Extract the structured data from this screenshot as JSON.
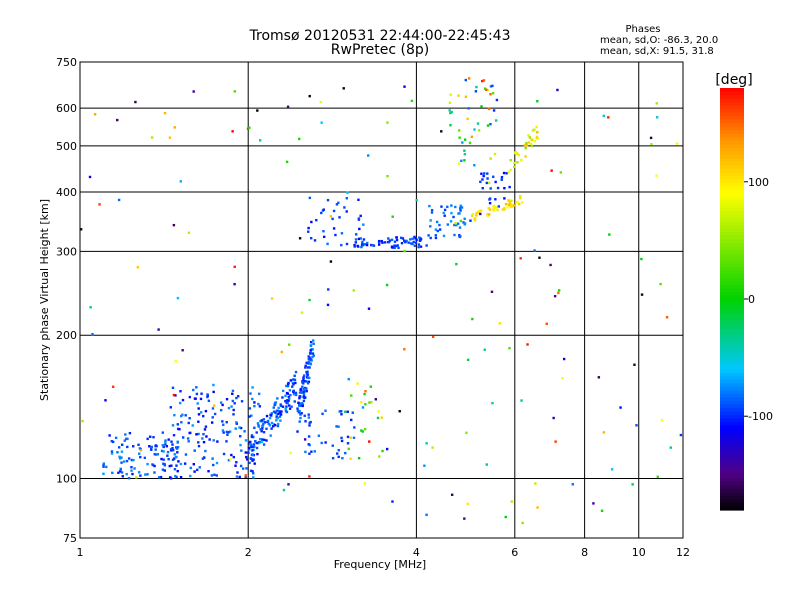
{
  "chart_data": {
    "type": "scatter",
    "title": "Tromsø 20120531 22:44:00-22:45:43",
    "subtitle": "RwPretec (8p)",
    "xlabel": "Frequency [MHz]",
    "ylabel": "Stationary phase Virtual Height [km]",
    "x_scale": "log",
    "y_scale": "log",
    "xlim": [
      1,
      12
    ],
    "ylim": [
      75,
      750
    ],
    "x_ticks": [
      1,
      2,
      4,
      6,
      8,
      10,
      12
    ],
    "x_tick_labels": [
      "1",
      "2",
      "4",
      "6",
      "8",
      "10",
      "12"
    ],
    "y_ticks": [
      75,
      100,
      200,
      300,
      400,
      500,
      600,
      750
    ],
    "y_tick_labels": [
      "75",
      "100",
      "200",
      "300",
      "400",
      "500",
      "600",
      "750"
    ],
    "grid": true,
    "info": {
      "heading": "Phases",
      "line1": "mean, sd,O: -86.3, 20.0",
      "line2": "mean, sd,X:  91.5, 31.8"
    },
    "colorbar": {
      "label": "[deg]",
      "range": [
        -180,
        180
      ],
      "ticks": [
        100,
        0,
        -100
      ],
      "tick_labels": [
        "100",
        "0",
        "-100"
      ]
    },
    "clusters": [
      {
        "x": [
          1.1,
          1.5
        ],
        "y": [
          100,
          125
        ],
        "phase": [
          -110,
          -70
        ],
        "count": 110
      },
      {
        "x": [
          1.45,
          2.1
        ],
        "y": [
          100,
          158
        ],
        "phase": [
          -115,
          -70
        ],
        "count": 170
      },
      {
        "x": [
          2.0,
          2.45
        ],
        "y": [
          105,
          170
        ],
        "phase": [
          -110,
          -70
        ],
        "count": 140
      },
      {
        "x": [
          2.45,
          2.62
        ],
        "y": [
          125,
          205
        ],
        "phase": [
          -110,
          -75
        ],
        "count": 90
      },
      {
        "x": [
          2.5,
          3.1
        ],
        "y": [
          110,
          140
        ],
        "phase": [
          -105,
          -75
        ],
        "count": 40
      },
      {
        "x": [
          3.0,
          3.5
        ],
        "y": [
          110,
          160
        ],
        "phase": [
          -20,
          120
        ],
        "count": 18
      },
      {
        "x": [
          2.55,
          3.2
        ],
        "y": [
          308,
          390
        ],
        "phase": [
          -110,
          -80
        ],
        "count": 35
      },
      {
        "x": [
          3.1,
          4.2
        ],
        "y": [
          305,
          322
        ],
        "phase": [
          -110,
          -80
        ],
        "count": 70
      },
      {
        "x": [
          4.2,
          5.0
        ],
        "y": [
          320,
          375
        ],
        "phase": [
          -100,
          -70
        ],
        "count": 45
      },
      {
        "x": [
          5.0,
          6.2
        ],
        "y": [
          345,
          395
        ],
        "phase": [
          80,
          120
        ],
        "count": 50
      },
      {
        "x": [
          5.2,
          5.9
        ],
        "y": [
          370,
          440
        ],
        "phase": [
          -110,
          -90
        ],
        "count": 25
      },
      {
        "x": [
          5.8,
          6.6
        ],
        "y": [
          420,
          560
        ],
        "phase": [
          40,
          120
        ],
        "count": 35
      },
      {
        "x": [
          4.5,
          5.6
        ],
        "y": [
          440,
          700
        ],
        "phase": [
          -110,
          180
        ],
        "count": 40
      },
      {
        "x": [
          1.0,
          12.0
        ],
        "y": [
          80,
          700
        ],
        "phase": [
          -180,
          180
        ],
        "count": 170
      }
    ]
  }
}
